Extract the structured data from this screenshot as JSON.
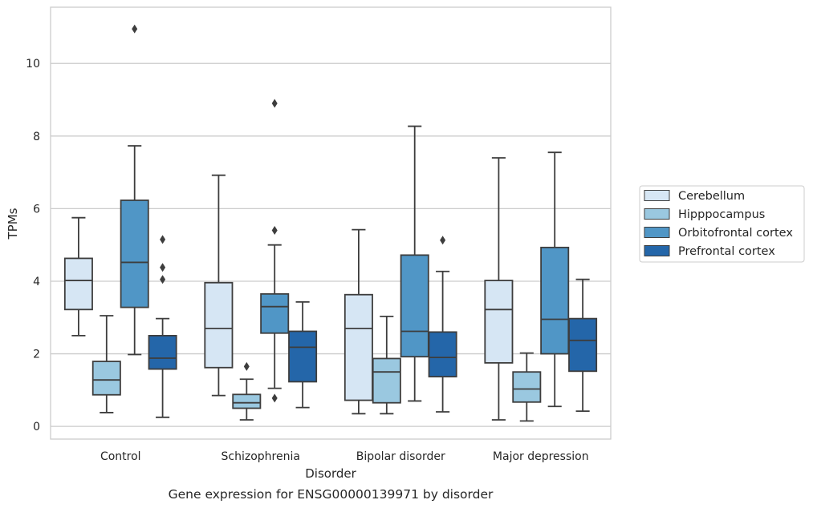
{
  "chart_data": {
    "type": "boxplot",
    "caption": "Gene expression for ENSG00000139971 by disorder",
    "xlabel": "Disorder",
    "ylabel": "TPMs",
    "ylim": [
      -0.35,
      11.55
    ],
    "yticks": [
      0,
      2,
      4,
      6,
      8,
      10
    ],
    "grid": "horizontal",
    "legend_position": "right",
    "categories": [
      "Control",
      "Schizophrenia",
      "Bipolar disorder",
      "Major depression"
    ],
    "series": [
      {
        "name": "Cerebellum",
        "color": "#d6e6f4",
        "boxes": [
          {
            "whislo": 2.5,
            "q1": 3.22,
            "med": 4.02,
            "q3": 4.63,
            "whishi": 5.75,
            "fliers": []
          },
          {
            "whislo": 0.85,
            "q1": 1.62,
            "med": 2.7,
            "q3": 3.96,
            "whishi": 6.92,
            "fliers": []
          },
          {
            "whislo": 0.35,
            "q1": 0.72,
            "med": 2.7,
            "q3": 3.63,
            "whishi": 5.42,
            "fliers": []
          },
          {
            "whislo": 0.18,
            "q1": 1.75,
            "med": 3.22,
            "q3": 4.02,
            "whishi": 7.4,
            "fliers": []
          }
        ]
      },
      {
        "name": "Hipppocampus",
        "color": "#9ac8e0",
        "boxes": [
          {
            "whislo": 0.38,
            "q1": 0.87,
            "med": 1.28,
            "q3": 1.79,
            "whishi": 3.05,
            "fliers": []
          },
          {
            "whislo": 0.18,
            "q1": 0.5,
            "med": 0.65,
            "q3": 0.88,
            "whishi": 1.3,
            "fliers": [
              1.65
            ]
          },
          {
            "whislo": 0.35,
            "q1": 0.65,
            "med": 1.5,
            "q3": 1.87,
            "whishi": 3.03,
            "fliers": []
          },
          {
            "whislo": 0.15,
            "q1": 0.67,
            "med": 1.03,
            "q3": 1.5,
            "whishi": 2.02,
            "fliers": []
          }
        ]
      },
      {
        "name": "Orbitofrontal cortex",
        "color": "#5096c6",
        "boxes": [
          {
            "whislo": 1.98,
            "q1": 3.28,
            "med": 4.52,
            "q3": 6.23,
            "whishi": 7.73,
            "fliers": [
              10.95
            ]
          },
          {
            "whislo": 1.05,
            "q1": 2.57,
            "med": 3.3,
            "q3": 3.65,
            "whishi": 5.0,
            "fliers": [
              8.9,
              5.4,
              0.78
            ]
          },
          {
            "whislo": 0.7,
            "q1": 1.92,
            "med": 2.62,
            "q3": 4.72,
            "whishi": 8.27,
            "fliers": []
          },
          {
            "whislo": 0.55,
            "q1": 2.0,
            "med": 2.95,
            "q3": 4.93,
            "whishi": 7.55,
            "fliers": []
          }
        ]
      },
      {
        "name": "Prefrontal cortex",
        "color": "#2466a9",
        "boxes": [
          {
            "whislo": 0.25,
            "q1": 1.58,
            "med": 1.88,
            "q3": 2.5,
            "whishi": 2.97,
            "fliers": [
              5.15,
              4.38,
              4.05
            ]
          },
          {
            "whislo": 0.52,
            "q1": 1.23,
            "med": 2.18,
            "q3": 2.62,
            "whishi": 3.43,
            "fliers": []
          },
          {
            "whislo": 0.4,
            "q1": 1.37,
            "med": 1.9,
            "q3": 2.6,
            "whishi": 4.27,
            "fliers": [
              5.13
            ]
          },
          {
            "whislo": 0.42,
            "q1": 1.52,
            "med": 2.37,
            "q3": 2.97,
            "whishi": 4.05,
            "fliers": []
          }
        ]
      }
    ]
  }
}
